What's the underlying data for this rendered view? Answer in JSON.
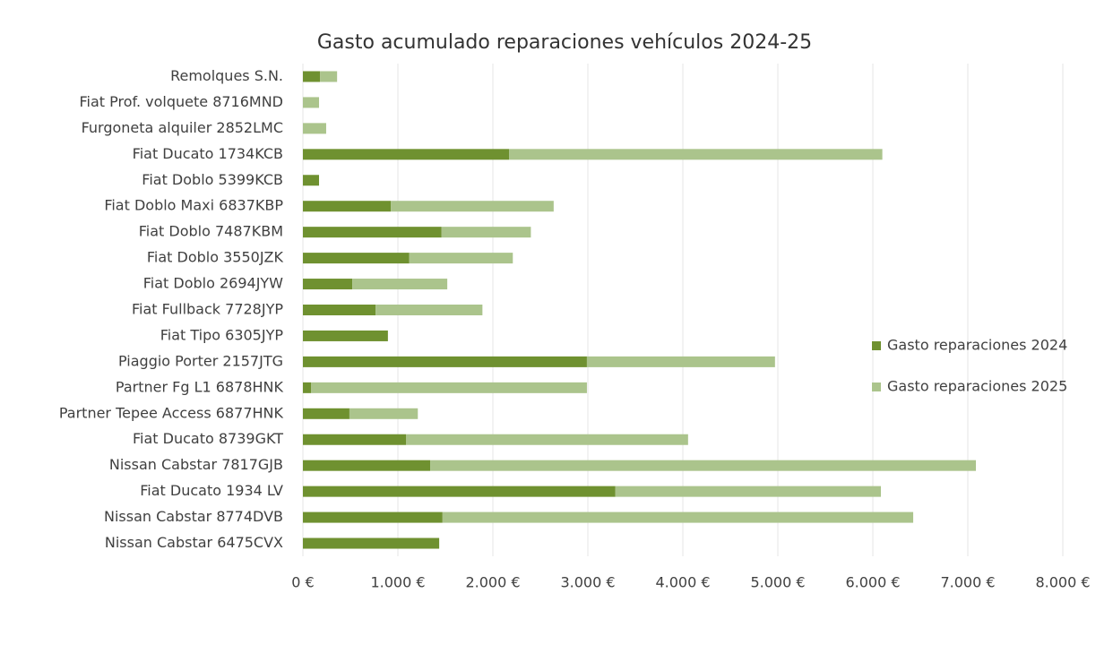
{
  "chart_data": {
    "type": "stacked-bar-horizontal",
    "title": "Gasto acumulado reparaciones vehículos 2024-25",
    "categories": [
      "Remolques S.N.",
      "Fiat Prof. volquete 8716MND",
      "Furgoneta alquiler 2852LMC",
      "Fiat Ducato 1734KCB",
      "Fiat Doblo 5399KCB",
      "Fiat Doblo Maxi 6837KBP",
      "Fiat Doblo 7487KBM",
      "Fiat Doblo 3550JZK",
      "Fiat Doblo 2694JYW",
      "Fiat Fullback 7728JYP",
      "Fiat Tipo 6305JYP",
      "Piaggio Porter 2157JTG",
      "Partner Fg L1 6878HNK",
      "Partner Tepee Access 6877HNK",
      "Fiat Ducato 8739GKT",
      "Nissan Cabstar 7817GJB",
      "Fiat Ducato 1934 LV",
      "Nissan Cabstar 8774DVB",
      "Nissan Cabstar 6475CVX"
    ],
    "series": [
      {
        "name": "Gasto reparaciones 2024",
        "color": "#6f9130",
        "values": [
          180,
          0,
          0,
          2170,
          170,
          925,
          1460,
          1120,
          520,
          765,
          895,
          2990,
          85,
          490,
          1085,
          1340,
          3290,
          1470,
          1435
        ]
      },
      {
        "name": "Gasto reparaciones 2025",
        "color": "#abc48c",
        "values": [
          180,
          170,
          245,
          3930,
          0,
          1715,
          940,
          1090,
          1000,
          1125,
          0,
          1980,
          2905,
          720,
          2970,
          5745,
          2795,
          4955,
          0
        ]
      }
    ],
    "xlim": [
      0,
      8000
    ],
    "xticks": [
      {
        "value": 0,
        "label": "0 €"
      },
      {
        "value": 1000,
        "label": "1.000 €"
      },
      {
        "value": 2000,
        "label": "2.000 €"
      },
      {
        "value": 3000,
        "label": "3.000 €"
      },
      {
        "value": 4000,
        "label": "4.000 €"
      },
      {
        "value": 5000,
        "label": "5.000 €"
      },
      {
        "value": 6000,
        "label": "6.000 €"
      },
      {
        "value": 7000,
        "label": "7.000 €"
      },
      {
        "value": 8000,
        "label": "8.000 €"
      }
    ],
    "grid": true,
    "legend": "right"
  }
}
